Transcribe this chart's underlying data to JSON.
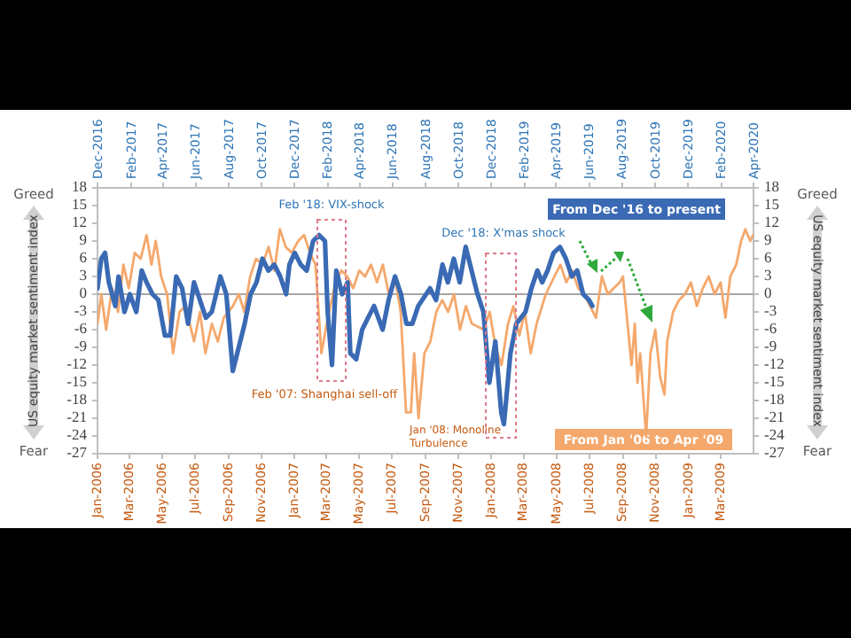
{
  "chart_data": {
    "type": "line",
    "ylabel": "US equity market sentiment index",
    "y2label": "US equity market sentiment index",
    "xlim": [
      "2006-01-01",
      "2009-05-01"
    ],
    "x2lim": [
      "2016-12-01",
      "2020-04-01"
    ],
    "xticks": [
      {
        "value": "2006-01",
        "label": "Jan-2006"
      },
      {
        "value": "2006-03",
        "label": "Mar-2006"
      },
      {
        "value": "2006-05",
        "label": "May-2006"
      },
      {
        "value": "2006-07",
        "label": "Jul-2006"
      },
      {
        "value": "2006-09",
        "label": "Sep-2006"
      },
      {
        "value": "2006-11",
        "label": "Nov-2006"
      },
      {
        "value": "2007-01",
        "label": "Jan-2007"
      },
      {
        "value": "2007-03",
        "label": "Mar-2007"
      },
      {
        "value": "2007-05",
        "label": "May-2007"
      },
      {
        "value": "2007-07",
        "label": "Jul-2007"
      },
      {
        "value": "2007-09",
        "label": "Sep-2007"
      },
      {
        "value": "2007-11",
        "label": "Nov-2007"
      },
      {
        "value": "2008-01",
        "label": "Jan-2008"
      },
      {
        "value": "2008-03",
        "label": "Mar-2008"
      },
      {
        "value": "2008-05",
        "label": "May-2008"
      },
      {
        "value": "2008-07",
        "label": "Jul-2008"
      },
      {
        "value": "2008-09",
        "label": "Sep-2008"
      },
      {
        "value": "2008-11",
        "label": "Nov-2008"
      },
      {
        "value": "2009-01",
        "label": "Jan-2009"
      },
      {
        "value": "2009-03",
        "label": "Mar-2009"
      }
    ],
    "x2ticks": [
      {
        "value": "2016-12",
        "label": "Dec-2016"
      },
      {
        "value": "2017-02",
        "label": "Feb-2017"
      },
      {
        "value": "2017-04",
        "label": "Apr-2017"
      },
      {
        "value": "2017-06",
        "label": "Jun-2017"
      },
      {
        "value": "2017-08",
        "label": "Aug-2017"
      },
      {
        "value": "2017-10",
        "label": "Oct-2017"
      },
      {
        "value": "2017-12",
        "label": "Dec-2017"
      },
      {
        "value": "2018-02",
        "label": "Feb-2018"
      },
      {
        "value": "2018-04",
        "label": "Apr-2018"
      },
      {
        "value": "2018-06",
        "label": "Jun-2018"
      },
      {
        "value": "2018-08",
        "label": "Aug-2018"
      },
      {
        "value": "2018-10",
        "label": "Oct-2018"
      },
      {
        "value": "2018-12",
        "label": "Dec-2018"
      },
      {
        "value": "2019-02",
        "label": "Feb-2019"
      },
      {
        "value": "2019-04",
        "label": "Apr-2019"
      },
      {
        "value": "2019-06",
        "label": "Jun-2019"
      },
      {
        "value": "2019-08",
        "label": "Aug-2019"
      },
      {
        "value": "2019-10",
        "label": "Oct-2019"
      },
      {
        "value": "2019-12",
        "label": "Dec-2019"
      },
      {
        "value": "2020-02",
        "label": "Feb-2020"
      },
      {
        "value": "2020-04",
        "label": "Apr-2020"
      }
    ],
    "ylim": [
      -27,
      18
    ],
    "yticks": [
      -27,
      -24,
      -21,
      -18,
      -15,
      -12,
      -9,
      -6,
      -3,
      0,
      3,
      6,
      9,
      12,
      15,
      18
    ],
    "y2lim": [
      -27,
      18
    ],
    "y2ticks": [
      -27,
      -24,
      -21,
      -18,
      -15,
      -12,
      -9,
      -6,
      -3,
      0,
      3,
      6,
      9,
      12,
      15,
      18
    ],
    "grid": false,
    "marker": "none",
    "line_style": "solid",
    "ref_lines": [
      {
        "axis": "y",
        "value": 0,
        "color": "#a6a6a6"
      }
    ],
    "annotations": [
      "Greed",
      "Fear",
      "Greed",
      "Fear",
      "Feb '18: VIX-shock",
      "Dec '18: X'mas shock",
      "Feb '07: Shanghai sell-off",
      "Jan '08: Monoline Turbulence"
    ],
    "series": [
      {
        "name": "From Jan '06 to Apr '09",
        "color": "#f4a86c",
        "x": [
          "2006-01-01",
          "2006-01-08",
          "2006-01-17",
          "2006-01-28",
          "2006-02-08",
          "2006-02-18",
          "2006-02-28",
          "2006-03-11",
          "2006-03-22",
          "2006-04-02",
          "2006-04-11",
          "2006-04-19",
          "2006-04-29",
          "2006-05-10",
          "2006-05-21",
          "2006-06-02",
          "2006-06-13",
          "2006-06-29",
          "2006-07-10",
          "2006-07-20",
          "2006-08-01",
          "2006-08-12",
          "2006-08-23",
          "2006-09-09",
          "2006-09-20",
          "2006-09-30",
          "2006-10-11",
          "2006-10-22",
          "2006-11-03",
          "2006-11-14",
          "2006-11-25",
          "2006-12-05",
          "2006-12-16",
          "2006-12-27",
          "2007-01-08",
          "2007-01-19",
          "2007-01-30",
          "2007-02-09",
          "2007-02-20",
          "2007-03-02",
          "2007-03-18",
          "2007-03-29",
          "2007-04-09",
          "2007-04-20",
          "2007-05-01",
          "2007-05-12",
          "2007-05-23",
          "2007-06-03",
          "2007-06-14",
          "2007-06-25",
          "2007-07-06",
          "2007-07-17",
          "2007-07-27",
          "2007-08-05",
          "2007-08-11",
          "2007-08-19",
          "2007-08-30",
          "2007-09-10",
          "2007-09-21",
          "2007-10-02",
          "2007-10-13",
          "2007-10-24",
          "2007-11-04",
          "2007-11-15",
          "2007-11-26",
          "2007-12-18",
          "2007-12-29",
          "2008-01-09",
          "2008-01-20",
          "2008-02-01",
          "2008-02-11",
          "2008-02-22",
          "2008-03-03",
          "2008-03-14",
          "2008-03-25",
          "2008-04-11",
          "2008-04-27",
          "2008-05-08",
          "2008-05-19",
          "2008-05-30",
          "2008-06-10",
          "2008-06-21",
          "2008-07-02",
          "2008-07-13",
          "2008-07-24",
          "2008-08-04",
          "2008-08-15",
          "2008-08-26",
          "2008-09-01",
          "2008-09-17",
          "2008-09-23",
          "2008-09-28",
          "2008-10-03",
          "2008-10-14",
          "2008-10-22",
          "2008-10-31",
          "2008-11-09",
          "2008-11-17",
          "2008-11-22",
          "2008-12-03",
          "2008-12-14",
          "2008-12-25",
          "2009-01-05",
          "2009-01-16",
          "2009-01-27",
          "2009-02-07",
          "2009-02-18",
          "2009-03-01",
          "2009-03-10",
          "2009-03-19",
          "2009-03-30",
          "2009-04-08",
          "2009-04-16",
          "2009-04-25",
          "2009-04-30"
        ],
        "values": [
          -5,
          0,
          -6,
          1,
          -3,
          5,
          1,
          7,
          6,
          10,
          5,
          9,
          3,
          0,
          -10,
          -3,
          -2,
          -8,
          -3,
          -10,
          -5,
          -8,
          -4,
          -2,
          0,
          -3,
          3,
          6,
          5,
          8,
          4,
          11,
          8,
          7,
          9,
          10,
          7,
          5,
          -10,
          -5,
          2,
          4,
          3,
          1,
          4,
          3,
          5,
          2,
          5,
          0,
          3,
          -3,
          -20,
          -20,
          -10,
          -21,
          -10,
          -8,
          -3,
          -1,
          -3,
          0,
          -6,
          -2,
          -5,
          -6,
          -3,
          -9,
          -12,
          -5,
          -2,
          -7,
          -3,
          -10,
          -5,
          0,
          3,
          5,
          2,
          4,
          1,
          0,
          -2,
          -4,
          3,
          0,
          1,
          2,
          3,
          -12,
          -5,
          -15,
          -10,
          -24,
          -10,
          -6,
          -14,
          -17,
          -8,
          -3,
          -1,
          0,
          2,
          -2,
          1,
          3,
          0,
          2,
          -4,
          3,
          5,
          9,
          11,
          9,
          10
        ]
      },
      {
        "name": "From Dec '16 to present",
        "color": "#3a6ab4",
        "axis": "x2",
        "x": [
          "2016-12-01",
          "2016-12-08",
          "2016-12-15",
          "2016-12-22",
          "2017-01-03",
          "2017-01-09",
          "2017-01-20",
          "2017-01-30",
          "2017-02-11",
          "2017-02-21",
          "2017-03-02",
          "2017-03-13",
          "2017-03-24",
          "2017-04-05",
          "2017-04-15",
          "2017-04-26",
          "2017-05-07",
          "2017-05-18",
          "2017-05-29",
          "2017-06-09",
          "2017-06-20",
          "2017-07-01",
          "2017-07-17",
          "2017-07-28",
          "2017-08-09",
          "2017-08-20",
          "2017-08-31",
          "2017-09-11",
          "2017-09-22",
          "2017-10-03",
          "2017-10-14",
          "2017-10-25",
          "2017-11-05",
          "2017-11-16",
          "2017-11-22",
          "2017-12-02",
          "2017-12-13",
          "2017-12-24",
          "2018-01-05",
          "2018-01-16",
          "2018-01-27",
          "2018-02-01",
          "2018-02-09",
          "2018-02-17",
          "2018-02-28",
          "2018-03-10",
          "2018-03-15",
          "2018-03-26",
          "2018-04-06",
          "2018-04-17",
          "2018-04-28",
          "2018-05-14",
          "2018-05-25",
          "2018-06-06",
          "2018-06-17",
          "2018-06-27",
          "2018-07-08",
          "2018-07-19",
          "2018-08-10",
          "2018-08-21",
          "2018-09-02",
          "2018-09-12",
          "2018-09-23",
          "2018-10-04",
          "2018-10-15",
          "2018-10-26",
          "2018-11-06",
          "2018-11-17",
          "2018-11-28",
          "2018-12-09",
          "2018-12-20",
          "2018-12-25",
          "2019-01-06",
          "2019-01-17",
          "2019-02-03",
          "2019-02-14",
          "2019-02-25",
          "2019-03-06",
          "2019-03-16",
          "2019-03-27",
          "2019-04-08",
          "2019-04-19",
          "2019-04-30",
          "2019-05-10",
          "2019-05-21",
          "2019-06-01",
          "2019-06-07"
        ],
        "values": [
          1,
          6,
          7,
          2,
          -2,
          3,
          -3,
          0,
          -3,
          4,
          2,
          0,
          -1,
          -7,
          -7,
          3,
          1,
          -5,
          2,
          -1,
          -4,
          -3,
          3,
          0,
          -13,
          -9,
          -5,
          0,
          2,
          6,
          4,
          5,
          3,
          0,
          5,
          7,
          5,
          4,
          9,
          10,
          9,
          -3,
          -12,
          4,
          0,
          2,
          -10,
          -11,
          -6,
          -4,
          -2,
          -6,
          -1,
          3,
          0,
          -5,
          -5,
          -2,
          1,
          -1,
          5,
          2,
          6,
          2,
          8,
          4,
          0,
          -3,
          -15,
          -8,
          -20,
          -22,
          -10,
          -5,
          -3,
          1,
          4,
          2,
          4,
          7,
          8,
          6,
          3,
          4,
          0,
          -1,
          -2
        ]
      }
    ]
  }
}
